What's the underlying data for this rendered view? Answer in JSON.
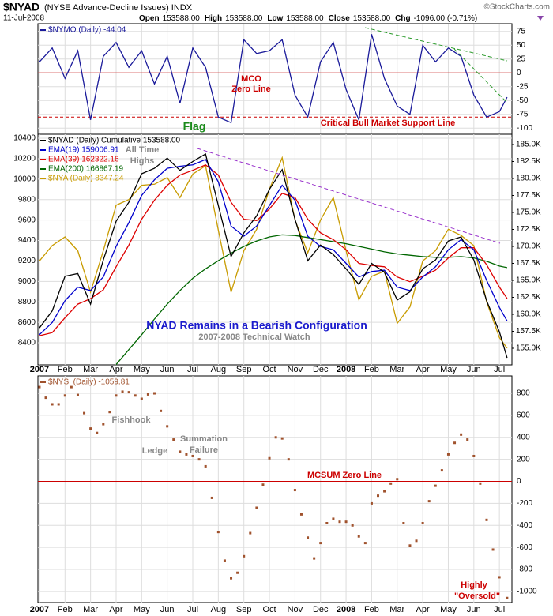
{
  "header": {
    "symbol": "$NYAD",
    "name": "(NYSE Advance-Decline Issues) INDX",
    "date": "11-Jul-2008",
    "source": "©StockCharts.com",
    "quote": [
      {
        "label": "Open",
        "value": "153588.00"
      },
      {
        "label": "High",
        "value": "153588.00"
      },
      {
        "label": "Low",
        "value": "153588.00"
      },
      {
        "label": "Close",
        "value": "153588.00"
      },
      {
        "label": "Chg",
        "value": "-1096.00 (-0.71%)"
      }
    ]
  },
  "chart_data": [
    {
      "type": "line",
      "grid": true,
      "yaxis_side": "right",
      "show_xlabels": false,
      "xlim": [
        -0.06,
        18.49
      ],
      "xticks": [
        {
          "value": 0,
          "label": "2007"
        },
        {
          "value": 1,
          "label": "Feb"
        },
        {
          "value": 2,
          "label": "Mar"
        },
        {
          "value": 3,
          "label": "Apr"
        },
        {
          "value": 4,
          "label": "May"
        },
        {
          "value": 5,
          "label": "Jun"
        },
        {
          "value": 6,
          "label": "Jul"
        },
        {
          "value": 7,
          "label": "Aug"
        },
        {
          "value": 8,
          "label": "Sep"
        },
        {
          "value": 9,
          "label": "Oct"
        },
        {
          "value": 10,
          "label": "Nov"
        },
        {
          "value": 11,
          "label": "Dec"
        },
        {
          "value": 12,
          "label": "2008"
        },
        {
          "value": 13,
          "label": "Feb"
        },
        {
          "value": 14,
          "label": "Mar"
        },
        {
          "value": 15,
          "label": "Apr"
        },
        {
          "value": 16,
          "label": "May"
        },
        {
          "value": 17,
          "label": "Jun"
        },
        {
          "value": 18,
          "label": "Jul"
        }
      ],
      "ylim": [
        -111,
        89
      ],
      "yticks": [
        75,
        50,
        25,
        0,
        -25,
        -50,
        -75,
        -100
      ],
      "reference_lines": [
        {
          "value": 0,
          "color": "#cc0000",
          "style": "solid"
        },
        {
          "value": -80,
          "color": "#cc0000",
          "style": "dashed"
        }
      ],
      "x": [
        0,
        0.5,
        1,
        1.5,
        2,
        2.5,
        3,
        3.5,
        4,
        4.5,
        5,
        5.5,
        6,
        6.5,
        7,
        7.5,
        8,
        8.5,
        9,
        9.5,
        10,
        10.5,
        11,
        11.5,
        12,
        12.5,
        13,
        13.5,
        14,
        14.5,
        15,
        15.5,
        16,
        16.5,
        17,
        17.5,
        18,
        18.3
      ],
      "series": [
        {
          "name": "$NYMO (Daily) -44.04",
          "color": "#1a1a9a",
          "axis": "y",
          "values": [
            20,
            45,
            -10,
            40,
            -85,
            30,
            55,
            10,
            40,
            -20,
            30,
            -55,
            45,
            10,
            -80,
            -90,
            60,
            35,
            40,
            60,
            -40,
            -80,
            20,
            55,
            -30,
            -85,
            70,
            -10,
            -60,
            -75,
            50,
            20,
            45,
            30,
            -40,
            -80,
            -70,
            -44.04
          ]
        }
      ],
      "annotations": [
        {
          "text": "MCO",
          "color": "#cc0000"
        },
        {
          "text": "Zero Line",
          "color": "#cc0000"
        },
        {
          "text": "Flag",
          "color": "#1a8a1a"
        },
        {
          "text": "Critical Bull Market Support Line",
          "color": "#cc0000"
        }
      ]
    },
    {
      "type": "line",
      "grid": true,
      "yaxis_side": "left",
      "show_xlabels": true,
      "xlim": [
        -0.06,
        18.49
      ],
      "xticks": [
        {
          "value": 0,
          "label": "2007"
        },
        {
          "value": 1,
          "label": "Feb"
        },
        {
          "value": 2,
          "label": "Mar"
        },
        {
          "value": 3,
          "label": "Apr"
        },
        {
          "value": 4,
          "label": "May"
        },
        {
          "value": 5,
          "label": "Jun"
        },
        {
          "value": 6,
          "label": "Jul"
        },
        {
          "value": 7,
          "label": "Aug"
        },
        {
          "value": 8,
          "label": "Sep"
        },
        {
          "value": 9,
          "label": "Oct"
        },
        {
          "value": 10,
          "label": "Nov"
        },
        {
          "value": 11,
          "label": "Dec"
        },
        {
          "value": 12,
          "label": "2008"
        },
        {
          "value": 13,
          "label": "Feb"
        },
        {
          "value": 14,
          "label": "Mar"
        },
        {
          "value": 15,
          "label": "Apr"
        },
        {
          "value": 16,
          "label": "May"
        },
        {
          "value": 17,
          "label": "Jun"
        },
        {
          "value": 18,
          "label": "Jul"
        }
      ],
      "ylim": [
        8184,
        10439
      ],
      "yticks": [
        8400,
        8600,
        8800,
        9000,
        9200,
        9400,
        9600,
        9800,
        10000,
        10200,
        10400
      ],
      "y2lim": [
        152558,
        186512
      ],
      "y2ticks": [
        {
          "value": 155000,
          "label": "155.0K"
        },
        {
          "value": 157500,
          "label": "157.5K"
        },
        {
          "value": 160000,
          "label": "160.0K"
        },
        {
          "value": 162500,
          "label": "162.5K"
        },
        {
          "value": 165000,
          "label": "165.0K"
        },
        {
          "value": 167500,
          "label": "167.5K"
        },
        {
          "value": 170000,
          "label": "170.0K"
        },
        {
          "value": 172500,
          "label": "172.5K"
        },
        {
          "value": 175000,
          "label": "175.0K"
        },
        {
          "value": 177500,
          "label": "177.5K"
        },
        {
          "value": 180000,
          "label": "180.0K"
        },
        {
          "value": 182500,
          "label": "182.5K"
        },
        {
          "value": 185000,
          "label": "185.0K"
        }
      ],
      "x": [
        0,
        0.5,
        1,
        1.5,
        2,
        2.5,
        3,
        3.5,
        4,
        4.5,
        5,
        5.5,
        6,
        6.5,
        7,
        7.5,
        8,
        8.5,
        9,
        9.5,
        10,
        10.5,
        11,
        11.5,
        12,
        12.5,
        13,
        13.5,
        14,
        14.5,
        15,
        15.5,
        16,
        16.5,
        17,
        17.5,
        18,
        18.3
      ],
      "series": [
        {
          "name": "$NYAD (Daily) Cumulative 153588.00",
          "color": "#000000",
          "axis": "y2",
          "values": [
            158000,
            160500,
            165600,
            166000,
            161500,
            168000,
            173700,
            176500,
            180700,
            181500,
            183000,
            181200,
            182500,
            183600,
            176000,
            168500,
            172000,
            174500,
            178400,
            181300,
            174000,
            167900,
            170200,
            168800,
            166700,
            164400,
            167500,
            166200,
            162100,
            163300,
            166700,
            168000,
            170800,
            171400,
            168000,
            162000,
            157400,
            153588
          ]
        },
        {
          "name": "EMA(19) 159006.91",
          "color": "#0000cc",
          "axis": "y2",
          "values": [
            157000,
            158800,
            162000,
            164000,
            163500,
            165500,
            170000,
            173500,
            177500,
            179800,
            181500,
            181800,
            182000,
            182800,
            179500,
            173000,
            171500,
            173000,
            176000,
            179000,
            176800,
            171500,
            170000,
            169500,
            167500,
            165500,
            166300,
            166500,
            164000,
            163500,
            165500,
            167000,
            169500,
            171000,
            169500,
            165000,
            161000,
            159006.91
          ]
        },
        {
          "name": "EMA(39) 162322.16",
          "color": "#dd0000",
          "axis": "y2",
          "values": [
            156850,
            157300,
            159500,
            161500,
            162300,
            163600,
            167000,
            170200,
            174000,
            176800,
            179000,
            180500,
            181200,
            182000,
            180500,
            176500,
            174000,
            173800,
            175500,
            177800,
            177200,
            174000,
            172000,
            171000,
            169500,
            167500,
            167200,
            167000,
            165500,
            164800,
            165600,
            166500,
            168300,
            169800,
            169800,
            167300,
            164000,
            162322.16
          ]
        },
        {
          "name": "EMA(200) 166867.19",
          "color": "#006600",
          "axis": "y2",
          "values": [
            null,
            null,
            null,
            null,
            null,
            null,
            152600,
            154800,
            157000,
            159300,
            161500,
            163500,
            165300,
            166700,
            167900,
            169000,
            170000,
            170800,
            171400,
            171700,
            171600,
            171300,
            171000,
            170700,
            170400,
            170000,
            169600,
            169200,
            168900,
            168700,
            168500,
            168400,
            168400,
            168500,
            168300,
            167800,
            167100,
            166867.19
          ]
        },
        {
          "name": "$NYA (Daily) 8347.24",
          "color": "#c89b00",
          "axis": "y",
          "values": [
            9200,
            9350,
            9435,
            9300,
            8895,
            9300,
            9745,
            9800,
            9940,
            9950,
            10015,
            9820,
            10050,
            10130,
            9500,
            8895,
            9300,
            9510,
            9900,
            10210,
            9600,
            9280,
            9600,
            9820,
            9300,
            8820,
            9050,
            9100,
            8590,
            8750,
            9200,
            9300,
            9510,
            9450,
            9350,
            8800,
            8450,
            8347.24
          ]
        }
      ],
      "annotations": [
        {
          "text": "All Time",
          "color": "#888888"
        },
        {
          "text": "Highs",
          "color": "#888888"
        },
        {
          "text": "NYAD Remains in a Bearish Configuration",
          "color": "#1a1acc"
        },
        {
          "text": "2007-2008 Technical Watch",
          "color": "#888888"
        }
      ]
    },
    {
      "type": "scatter",
      "grid": true,
      "yaxis_side": "right",
      "show_xlabels": true,
      "xlim": [
        -0.06,
        18.49
      ],
      "xticks": [
        {
          "value": 0,
          "label": "2007"
        },
        {
          "value": 1,
          "label": "Feb"
        },
        {
          "value": 2,
          "label": "Mar"
        },
        {
          "value": 3,
          "label": "Apr"
        },
        {
          "value": 4,
          "label": "May"
        },
        {
          "value": 5,
          "label": "Jun"
        },
        {
          "value": 6,
          "label": "Jul"
        },
        {
          "value": 7,
          "label": "Aug"
        },
        {
          "value": 8,
          "label": "Sep"
        },
        {
          "value": 9,
          "label": "Oct"
        },
        {
          "value": 10,
          "label": "Nov"
        },
        {
          "value": 11,
          "label": "Dec"
        },
        {
          "value": 12,
          "label": "2008"
        },
        {
          "value": 13,
          "label": "Feb"
        },
        {
          "value": 14,
          "label": "Mar"
        },
        {
          "value": 15,
          "label": "Apr"
        },
        {
          "value": 16,
          "label": "May"
        },
        {
          "value": 17,
          "label": "Jun"
        },
        {
          "value": 18,
          "label": "Jul"
        }
      ],
      "ylim": [
        -1101,
        958
      ],
      "yticks": [
        800,
        600,
        400,
        200,
        0,
        -200,
        -400,
        -600,
        -800,
        -1000
      ],
      "reference_lines": [
        {
          "value": 0,
          "color": "#cc0000",
          "style": "solid"
        }
      ],
      "x": [
        0,
        0.25,
        0.5,
        0.75,
        1,
        1.25,
        1.5,
        1.75,
        2,
        2.25,
        2.5,
        2.75,
        3,
        3.25,
        3.5,
        3.75,
        4,
        4.25,
        4.5,
        4.75,
        5,
        5.25,
        5.5,
        5.75,
        6,
        6.25,
        6.5,
        6.75,
        7,
        7.25,
        7.5,
        7.75,
        8,
        8.25,
        8.5,
        8.75,
        9,
        9.25,
        9.5,
        9.75,
        10,
        10.25,
        10.5,
        10.75,
        11,
        11.25,
        11.5,
        11.75,
        12,
        12.25,
        12.5,
        12.75,
        13,
        13.25,
        13.5,
        13.75,
        14,
        14.25,
        14.5,
        14.75,
        15,
        15.25,
        15.5,
        15.75,
        16,
        16.25,
        16.5,
        16.75,
        17,
        17.25,
        17.5,
        17.75,
        18,
        18.3
      ],
      "series": [
        {
          "name": "$NYSI (Daily) -1059.81",
          "color": "#a0522d",
          "axis": "y",
          "values": [
            857,
            760,
            700,
            700,
            780,
            857,
            785,
            620,
            480,
            440,
            520,
            630,
            780,
            815,
            810,
            780,
            750,
            790,
            800,
            640,
            500,
            380,
            270,
            245,
            230,
            200,
            137,
            -150,
            -460,
            -720,
            -880,
            -830,
            -680,
            -470,
            -240,
            -30,
            210,
            400,
            390,
            200,
            -79,
            -300,
            -511,
            -700,
            -560,
            -380,
            -340,
            -367,
            -367,
            -400,
            -500,
            -560,
            -200,
            -130,
            -90,
            -20,
            20,
            -380,
            -583,
            -540,
            -380,
            -180,
            -40,
            100,
            245,
            350,
            425,
            380,
            230,
            -20,
            -350,
            -620,
            -871,
            -1059.81
          ]
        }
      ],
      "annotations": [
        {
          "text": "Fishhook",
          "color": "#888888"
        },
        {
          "text": "Ledge",
          "color": "#888888"
        },
        {
          "text": "Summation",
          "color": "#888888"
        },
        {
          "text": "Failure",
          "color": "#888888"
        },
        {
          "text": "MCSUM Zero Line",
          "color": "#cc0000"
        },
        {
          "text": "Highly",
          "color": "#cc0000"
        },
        {
          "text": "\"Oversold\"",
          "color": "#cc0000"
        }
      ]
    }
  ]
}
